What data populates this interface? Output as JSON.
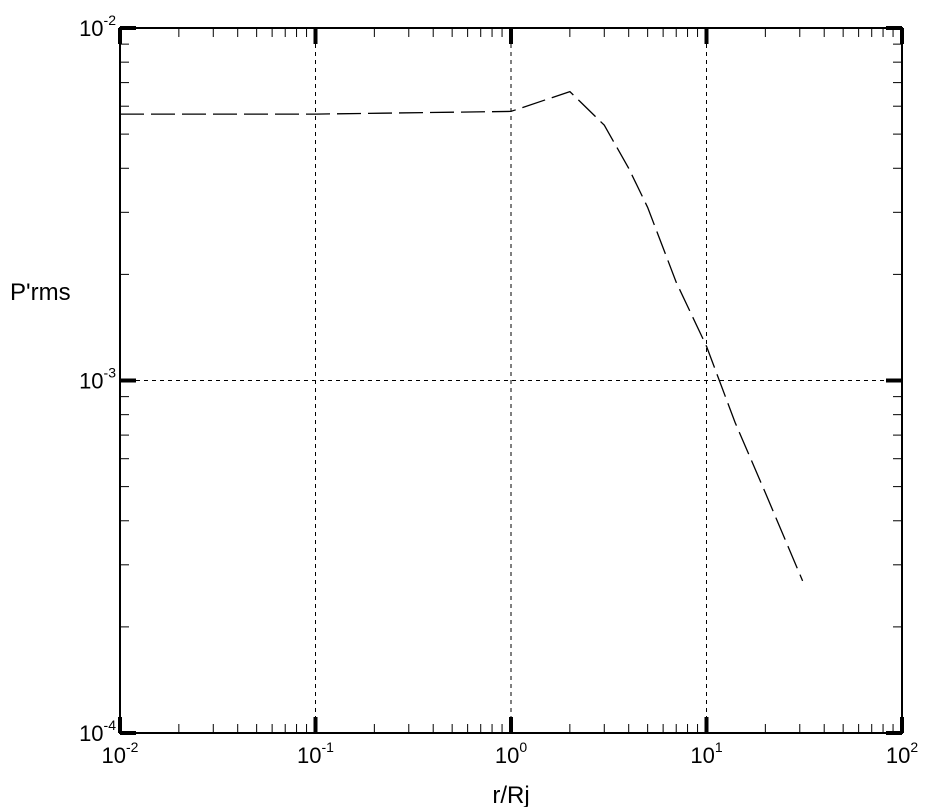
{
  "chart_data": {
    "type": "line",
    "x_scale": "log",
    "y_scale": "log",
    "xlabel": "r/Rj",
    "ylabel": "P'rms",
    "xlim": [
      0.01,
      100
    ],
    "ylim": [
      0.0001,
      0.01
    ],
    "grid": true,
    "x_ticks": [
      {
        "base": "10",
        "exp": "-2",
        "value": 0.01
      },
      {
        "base": "10",
        "exp": "-1",
        "value": 0.1
      },
      {
        "base": "10",
        "exp": "0",
        "value": 1
      },
      {
        "base": "10",
        "exp": "1",
        "value": 10
      },
      {
        "base": "10",
        "exp": "2",
        "value": 100
      }
    ],
    "y_ticks": [
      {
        "base": "10",
        "exp": "-2",
        "value": 0.01
      },
      {
        "base": "10",
        "exp": "-3",
        "value": 0.001
      },
      {
        "base": "10",
        "exp": "-4",
        "value": 0.0001
      }
    ],
    "series": [
      {
        "line_style": "dashed",
        "color": "#000000",
        "x": [
          0.01,
          0.1,
          1.0,
          2.0,
          3.0,
          4.0,
          5.0,
          7.0,
          10.0,
          14.0,
          20.0,
          31.0
        ],
        "y": [
          0.0057,
          0.0057,
          0.0058,
          0.0066,
          0.0053,
          0.004,
          0.0031,
          0.0019,
          0.00125,
          0.00076,
          0.00048,
          0.00027
        ]
      }
    ]
  }
}
